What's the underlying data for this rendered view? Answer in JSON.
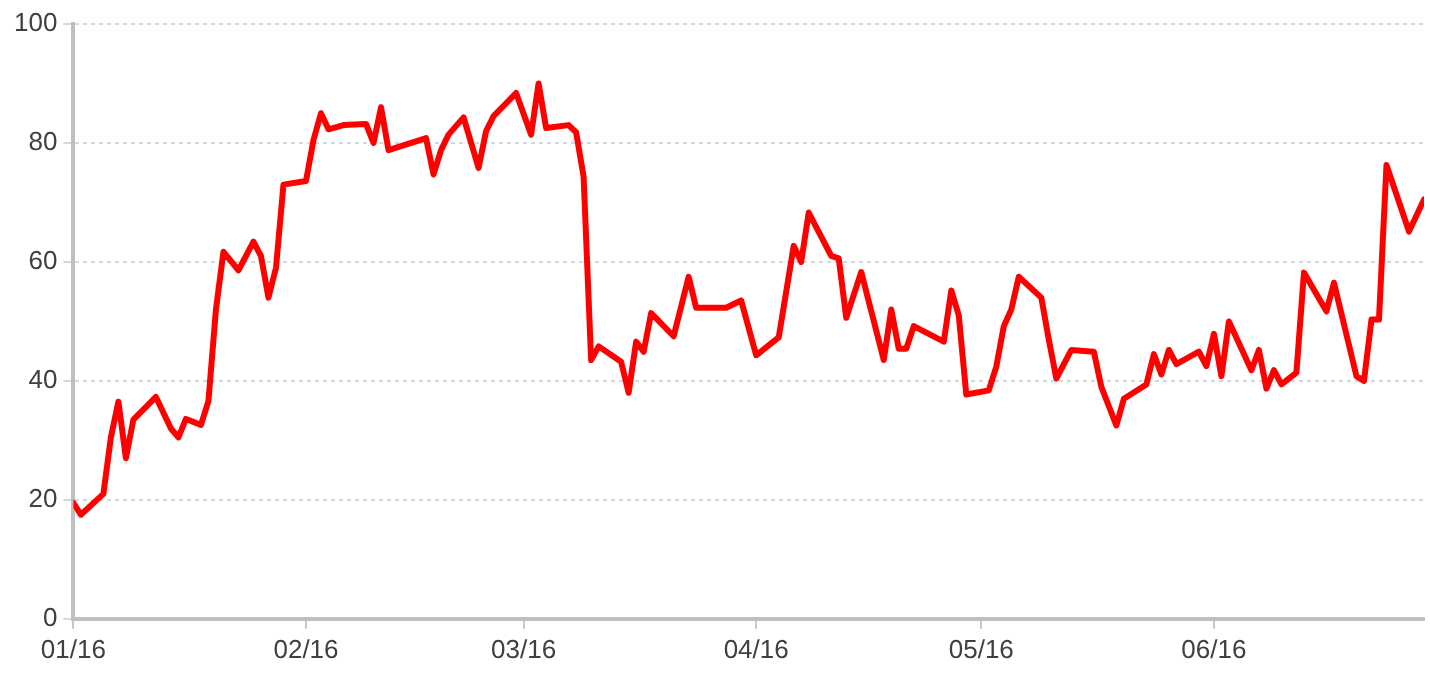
{
  "chart_data": {
    "type": "line",
    "x": [
      "2016-01-01",
      "2016-01-02",
      "2016-01-05",
      "2016-01-06",
      "2016-01-07",
      "2016-01-08",
      "2016-01-09",
      "2016-01-12",
      "2016-01-14",
      "2016-01-15",
      "2016-01-16",
      "2016-01-18",
      "2016-01-19",
      "2016-01-20",
      "2016-01-21",
      "2016-01-23",
      "2016-01-25",
      "2016-01-26",
      "2016-01-27",
      "2016-01-28",
      "2016-01-29",
      "2016-02-01",
      "2016-02-02",
      "2016-02-03",
      "2016-02-04",
      "2016-02-06",
      "2016-02-09",
      "2016-02-10",
      "2016-02-11",
      "2016-02-12",
      "2016-02-17",
      "2016-02-18",
      "2016-02-19",
      "2016-02-20",
      "2016-02-22",
      "2016-02-24",
      "2016-02-25",
      "2016-02-26",
      "2016-02-29",
      "2016-03-02",
      "2016-03-03",
      "2016-03-04",
      "2016-03-07",
      "2016-03-08",
      "2016-03-09",
      "2016-03-10",
      "2016-03-11",
      "2016-03-14",
      "2016-03-15",
      "2016-03-16",
      "2016-03-17",
      "2016-03-18",
      "2016-03-21",
      "2016-03-23",
      "2016-03-24",
      "2016-03-28",
      "2016-03-30",
      "2016-04-01",
      "2016-04-04",
      "2016-04-06",
      "2016-04-07",
      "2016-04-08",
      "2016-04-11",
      "2016-04-12",
      "2016-04-13",
      "2016-04-15",
      "2016-04-18",
      "2016-04-19",
      "2016-04-20",
      "2016-04-21",
      "2016-04-22",
      "2016-04-26",
      "2016-04-27",
      "2016-04-28",
      "2016-04-29",
      "2016-05-02",
      "2016-05-03",
      "2016-05-04",
      "2016-05-05",
      "2016-05-06",
      "2016-05-09",
      "2016-05-10",
      "2016-05-11",
      "2016-05-13",
      "2016-05-16",
      "2016-05-17",
      "2016-05-19",
      "2016-05-20",
      "2016-05-23",
      "2016-05-24",
      "2016-05-25",
      "2016-05-26",
      "2016-05-27",
      "2016-05-30",
      "2016-05-31",
      "2016-06-01",
      "2016-06-02",
      "2016-06-03",
      "2016-06-06",
      "2016-06-07",
      "2016-06-08",
      "2016-06-09",
      "2016-06-10",
      "2016-06-12",
      "2016-06-13",
      "2016-06-16",
      "2016-06-17",
      "2016-06-20",
      "2016-06-21",
      "2016-06-22",
      "2016-06-23",
      "2016-06-24",
      "2016-06-27",
      "2016-06-29"
    ],
    "series": [
      {
        "color": "#ff0000",
        "values": [
          19.5,
          17.5,
          21,
          30.5,
          36.5,
          27,
          33.5,
          37.3,
          32,
          30.5,
          33.6,
          32.6,
          36.6,
          52,
          61.7,
          58.6,
          63.4,
          61,
          54,
          59,
          73,
          73.6,
          80.5,
          85,
          82.3,
          83,
          83.2,
          80,
          86,
          78.8,
          80.8,
          74.7,
          78.8,
          81.4,
          84.3,
          75.8,
          82,
          84.5,
          88.4,
          81.4,
          90,
          82.5,
          83,
          81.8,
          74.3,
          43.5,
          45.8,
          43.2,
          38,
          46.6,
          44.9,
          51.4,
          47.5,
          57.5,
          52.3,
          52.3,
          53.5,
          44.3,
          47.3,
          62.7,
          60,
          68.3,
          61,
          60.6,
          50.6,
          58.3,
          43.5,
          52,
          45.4,
          45.4,
          49.2,
          46.6,
          55.2,
          51,
          37.7,
          38.4,
          42.4,
          49.2,
          52,
          57.5,
          54,
          46.9,
          40.4,
          45.2,
          44.9,
          39,
          32.5,
          37,
          39.4,
          44.5,
          41.1,
          45.2,
          42.8,
          44.9,
          42.5,
          47.9,
          40.8,
          50,
          41.8,
          45.2,
          38.7,
          41.8,
          39.4,
          41.4,
          58.2,
          51.7,
          56.5,
          40.8,
          40,
          50.3,
          50.3,
          76.3,
          65.1,
          70.5
        ]
      }
    ],
    "xlim": [
      "2016-01-01",
      "2016-06-29"
    ],
    "xticks": [
      {
        "value": "2016-01-01",
        "label": "01/16"
      },
      {
        "value": "2016-02-01",
        "label": "02/16"
      },
      {
        "value": "2016-03-01",
        "label": "03/16"
      },
      {
        "value": "2016-04-01",
        "label": "04/16"
      },
      {
        "value": "2016-05-01",
        "label": "05/16"
      },
      {
        "value": "2016-06-01",
        "label": "06/16"
      }
    ],
    "ylim": [
      0,
      100
    ],
    "yticks": [
      0,
      20,
      40,
      60,
      80,
      100
    ],
    "grid": "y",
    "legend": false,
    "marker": "none",
    "line_style": "solid"
  }
}
